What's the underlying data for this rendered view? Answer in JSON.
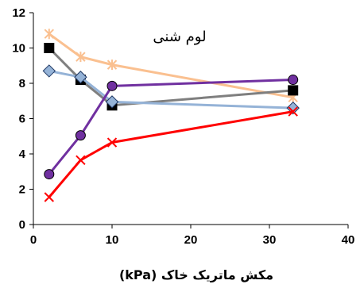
{
  "chart_data": {
    "type": "line",
    "title": "",
    "xlabel": "مکش ماتریک خاک (kPa)",
    "ylabel": "",
    "annotation": "لوم شنی",
    "xlim": [
      0,
      40
    ],
    "ylim": [
      0,
      12
    ],
    "x_ticks": [
      0,
      10,
      20,
      30,
      40
    ],
    "y_ticks": [
      0,
      2,
      4,
      6,
      8,
      10,
      12
    ],
    "grid": false,
    "series": [
      {
        "x": [
          2,
          6,
          10,
          33
        ],
        "y": [
          10.8,
          9.5,
          9.05,
          7.2
        ],
        "color": "#FAC090",
        "marker": "asterisk"
      },
      {
        "x": [
          2,
          6,
          10,
          33
        ],
        "y": [
          10.0,
          8.2,
          6.75,
          7.6
        ],
        "color": "#7F7F7F",
        "marker": "square",
        "marker_fill": "#000000"
      },
      {
        "x": [
          2,
          6,
          10,
          33
        ],
        "y": [
          8.7,
          8.35,
          6.95,
          6.6
        ],
        "color": "#95B3D7",
        "marker": "diamond",
        "marker_fill": "#95B3D7"
      },
      {
        "x": [
          2,
          6,
          10,
          33
        ],
        "y": [
          2.85,
          5.05,
          7.85,
          8.2
        ],
        "color": "#7030A0",
        "marker": "circle",
        "marker_fill": "#7030A0"
      },
      {
        "x": [
          2,
          6,
          10,
          33
        ],
        "y": [
          1.55,
          3.65,
          4.65,
          6.4
        ],
        "color": "#FF0000",
        "marker": "x"
      }
    ]
  }
}
